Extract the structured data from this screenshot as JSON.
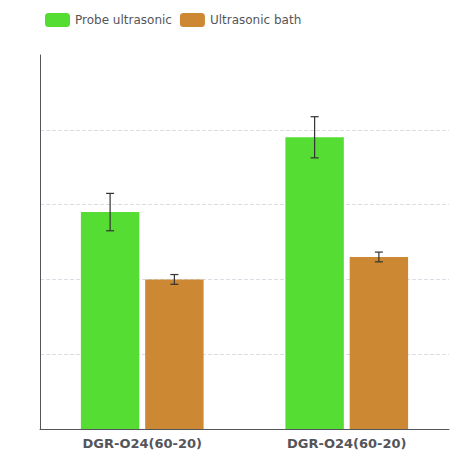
{
  "chart_data": {
    "type": "bar",
    "categories": [
      "DGR-O24(60-20)",
      "DGR-O24(60-20)"
    ],
    "series": [
      {
        "name": "Probe ultrasonic",
        "color": "#55dd33",
        "values": [
          0.58,
          0.78
        ],
        "errors": [
          0.05,
          0.055
        ]
      },
      {
        "name": "Ultrasonic bath",
        "color": "#cc8833",
        "values": [
          0.4,
          0.46
        ],
        "errors": [
          0.013,
          0.013
        ]
      }
    ],
    "ylim": [
      0,
      1.0
    ],
    "yticks": [
      0.2,
      0.4,
      0.6,
      0.8
    ],
    "grid": true,
    "legend": "upper left",
    "tick_labels": "x"
  }
}
